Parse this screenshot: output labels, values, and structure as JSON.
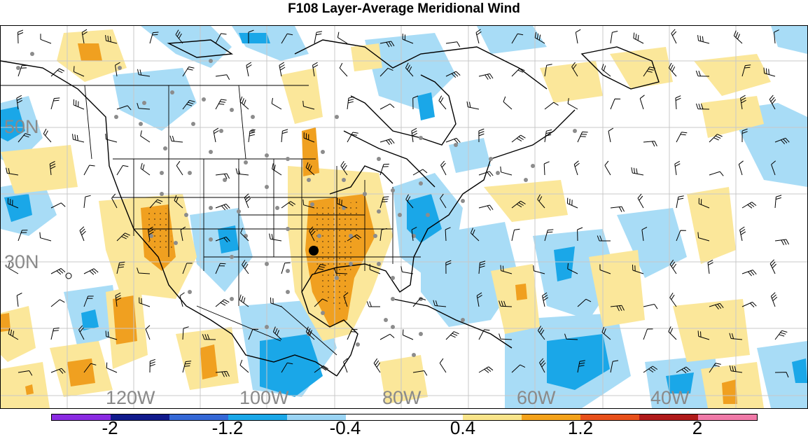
{
  "title": "F108 Layer-Average Meridional Wind",
  "latitude_labels": [
    "50N",
    "30N"
  ],
  "longitude_labels": [
    "120W",
    "100W",
    "80W",
    "60W",
    "40W"
  ],
  "colorbar": {
    "colors": [
      "#8a2be2",
      "#101a8c",
      "#3468d6",
      "#1aa7e8",
      "#9ad4f4",
      "#ffffff",
      "#ffffff",
      "#f9e48a",
      "#f4a21a",
      "#e8501a",
      "#b01a1a",
      "#f07aa8"
    ],
    "labels": [
      "-2",
      "-1.2",
      "-0.4",
      "0.4",
      "1.2",
      "2"
    ]
  },
  "colors": {
    "positive_light": "#fbe79a",
    "positive_strong": "#f0a020",
    "negative_light": "#a8dcf6",
    "negative_strong": "#1aa7e8",
    "station_dot": "#8c8c8c",
    "grid": "#c8c8c8"
  }
}
